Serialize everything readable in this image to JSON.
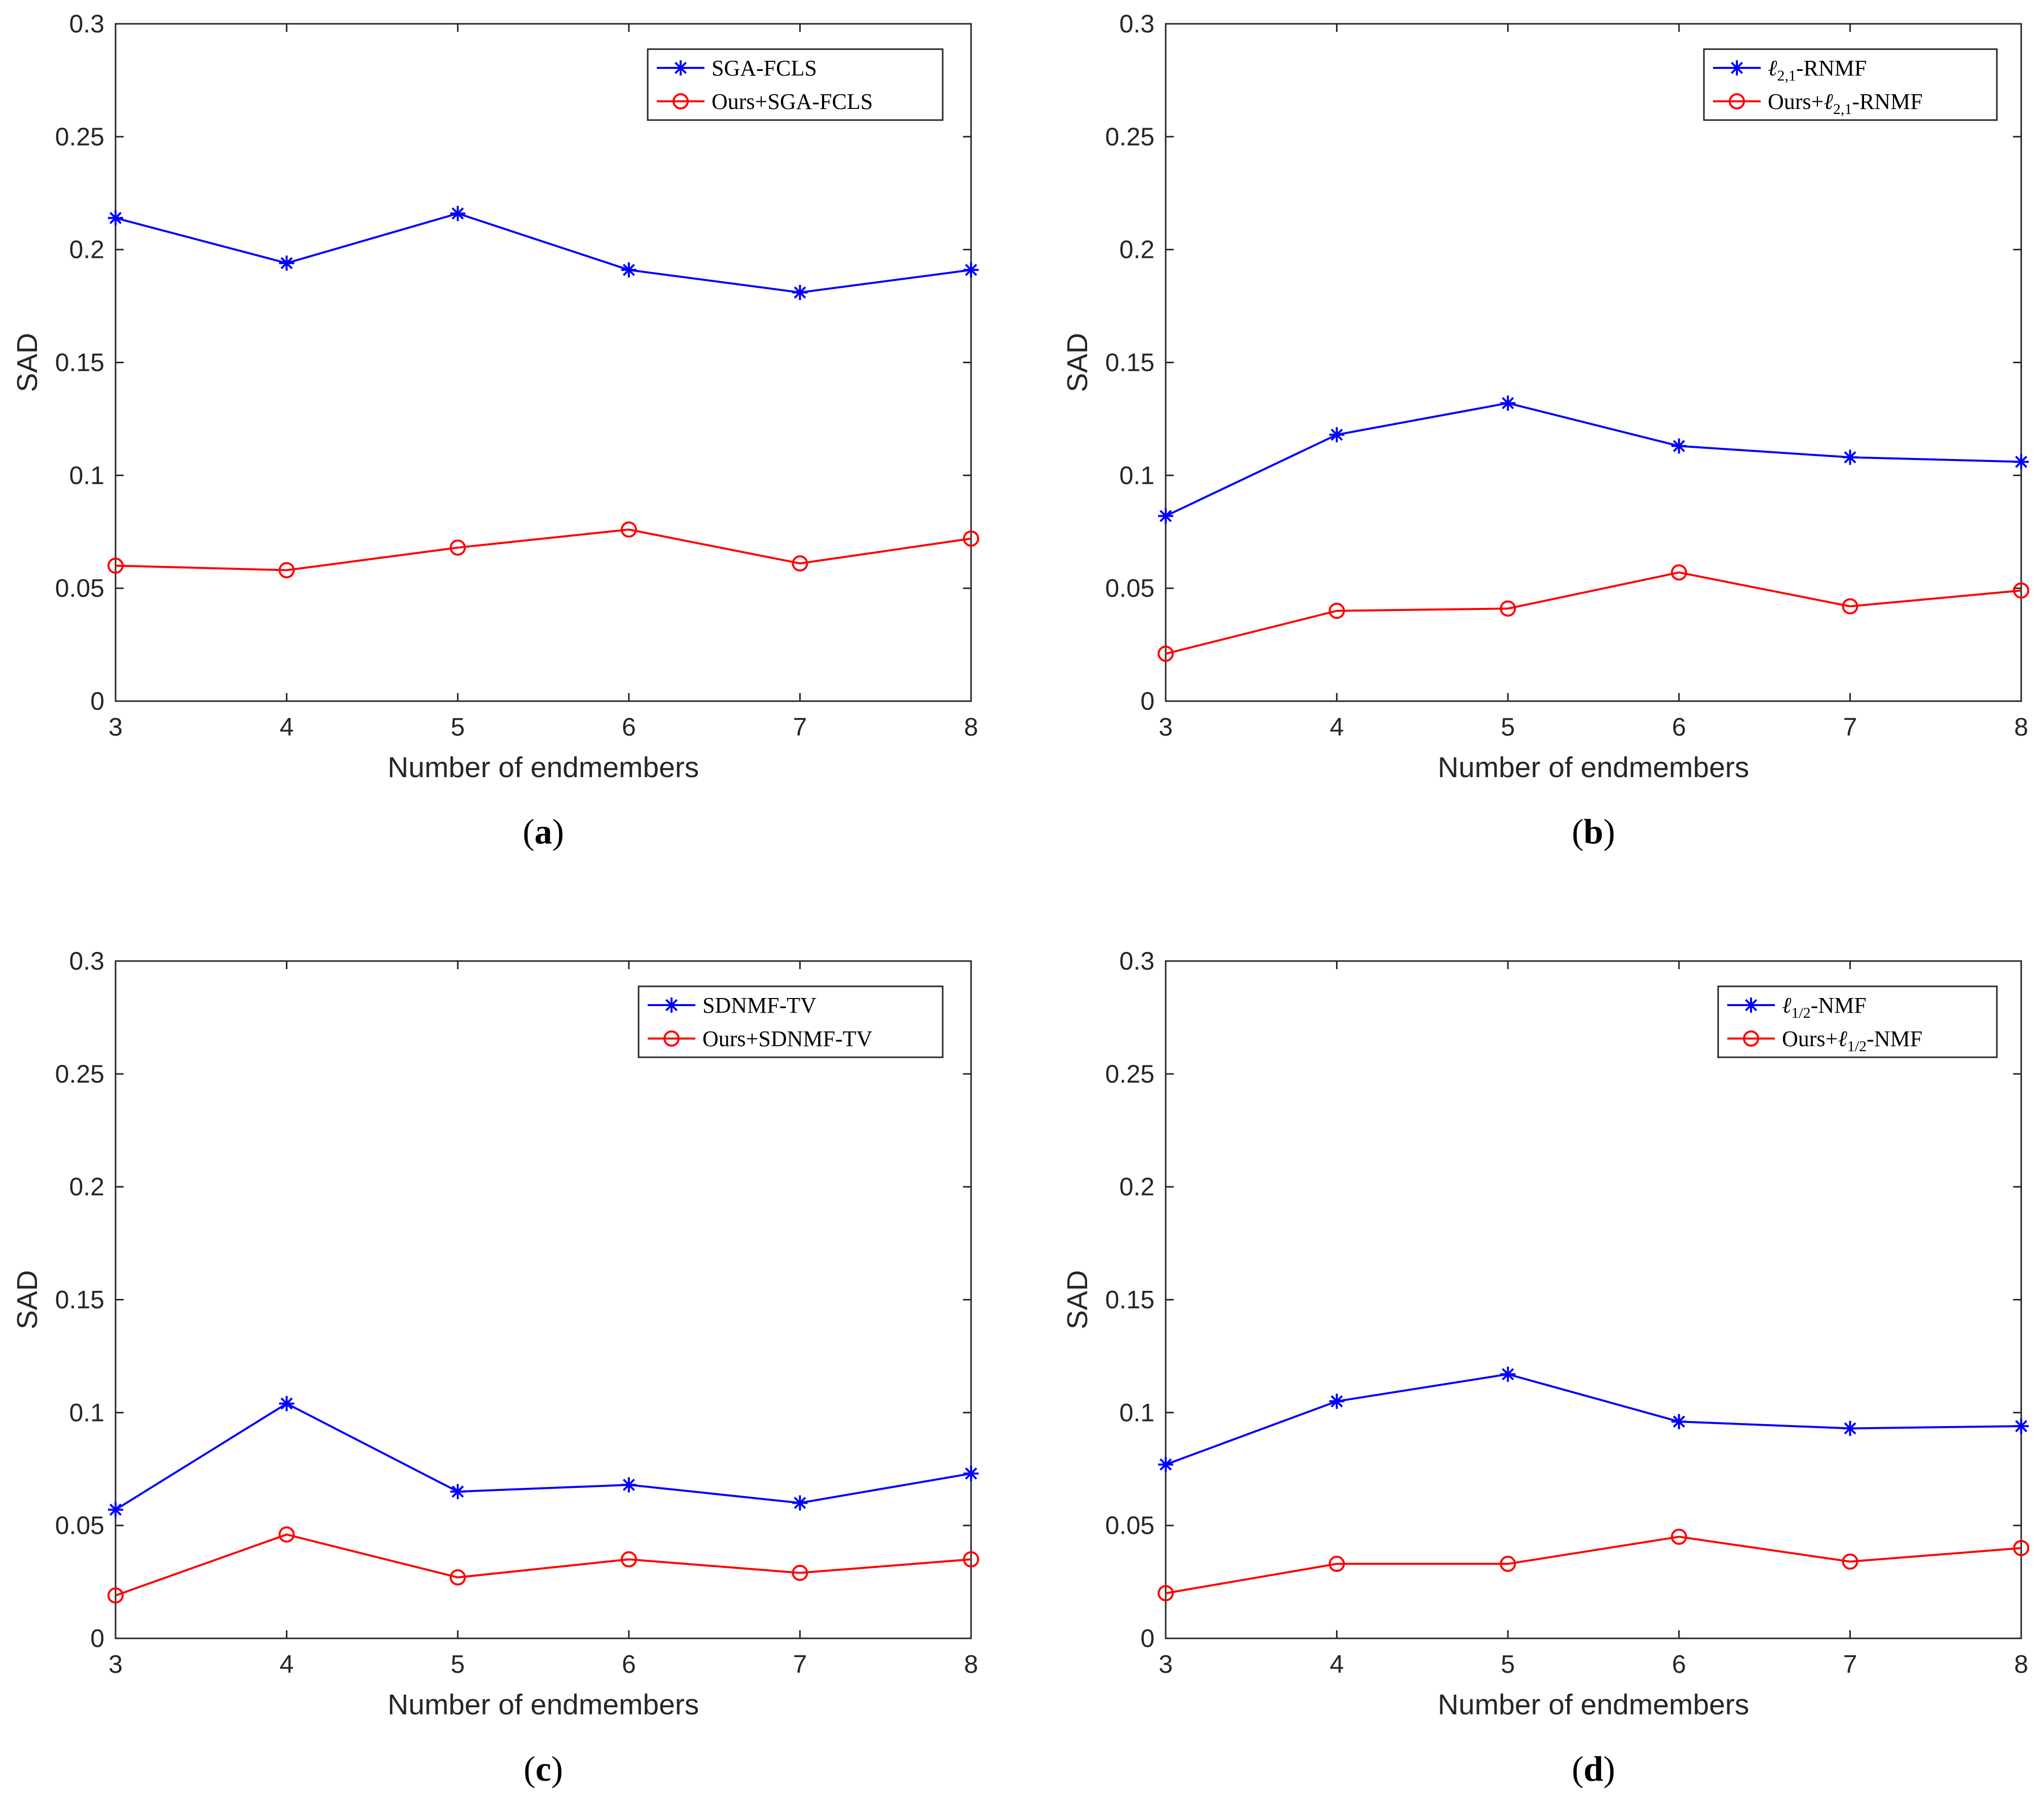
{
  "chart_data": [
    {
      "type": "line",
      "caption": "a",
      "x": [
        3,
        4,
        5,
        6,
        7,
        8
      ],
      "xlabel": "Number of endmembers",
      "ylabel": "SAD",
      "xlim": [
        3,
        8
      ],
      "ylim": [
        0,
        0.3
      ],
      "xticks": [
        "3",
        "4",
        "5",
        "6",
        "7",
        "8"
      ],
      "yticks": [
        "0",
        "0.05",
        "0.1",
        "0.15",
        "0.2",
        "0.25",
        "0.3"
      ],
      "legend_position": "top-right",
      "series": [
        {
          "name": "SGA-FCLS",
          "marker": "asterisk",
          "color": "#0000ff",
          "values": [
            0.214,
            0.194,
            0.216,
            0.191,
            0.181,
            0.191
          ]
        },
        {
          "name": "Ours+SGA-FCLS",
          "marker": "circle",
          "color": "#ff0000",
          "values": [
            0.06,
            0.058,
            0.068,
            0.076,
            0.061,
            0.072
          ]
        }
      ]
    },
    {
      "type": "line",
      "caption": "b",
      "x": [
        3,
        4,
        5,
        6,
        7,
        8
      ],
      "xlabel": "Number of endmembers",
      "ylabel": "SAD",
      "xlim": [
        3,
        8
      ],
      "ylim": [
        0,
        0.3
      ],
      "xticks": [
        "3",
        "4",
        "5",
        "6",
        "7",
        "8"
      ],
      "yticks": [
        "0",
        "0.05",
        "0.1",
        "0.15",
        "0.2",
        "0.25",
        "0.3"
      ],
      "legend_position": "top-right",
      "series": [
        {
          "name": "ℓ2,1-RNMF",
          "marker": "asterisk",
          "color": "#0000ff",
          "values": [
            0.082,
            0.118,
            0.132,
            0.113,
            0.108,
            0.106
          ]
        },
        {
          "name": "Ours+ℓ2,1-RNMF",
          "marker": "circle",
          "color": "#ff0000",
          "values": [
            0.021,
            0.04,
            0.041,
            0.057,
            0.042,
            0.049
          ]
        }
      ]
    },
    {
      "type": "line",
      "caption": "c",
      "x": [
        3,
        4,
        5,
        6,
        7,
        8
      ],
      "xlabel": "Number of endmembers",
      "ylabel": "SAD",
      "xlim": [
        3,
        8
      ],
      "ylim": [
        0,
        0.3
      ],
      "xticks": [
        "3",
        "4",
        "5",
        "6",
        "7",
        "8"
      ],
      "yticks": [
        "0",
        "0.05",
        "0.1",
        "0.15",
        "0.2",
        "0.25",
        "0.3"
      ],
      "legend_position": "top-right",
      "series": [
        {
          "name": "SDNMF-TV",
          "marker": "asterisk",
          "color": "#0000ff",
          "values": [
            0.057,
            0.104,
            0.065,
            0.068,
            0.06,
            0.073
          ]
        },
        {
          "name": "Ours+SDNMF-TV",
          "marker": "circle",
          "color": "#ff0000",
          "values": [
            0.019,
            0.046,
            0.027,
            0.035,
            0.029,
            0.035
          ]
        }
      ]
    },
    {
      "type": "line",
      "caption": "d",
      "x": [
        3,
        4,
        5,
        6,
        7,
        8
      ],
      "xlabel": "Number of endmembers",
      "ylabel": "SAD",
      "xlim": [
        3,
        8
      ],
      "ylim": [
        0,
        0.3
      ],
      "xticks": [
        "3",
        "4",
        "5",
        "6",
        "7",
        "8"
      ],
      "yticks": [
        "0",
        "0.05",
        "0.1",
        "0.15",
        "0.2",
        "0.25",
        "0.3"
      ],
      "legend_position": "top-right",
      "series": [
        {
          "name": "ℓ1/2-NMF",
          "marker": "asterisk",
          "color": "#0000ff",
          "values": [
            0.077,
            0.105,
            0.117,
            0.096,
            0.093,
            0.094
          ]
        },
        {
          "name": "Ours+ℓ1/2-NMF",
          "marker": "circle",
          "color": "#ff0000",
          "values": [
            0.02,
            0.033,
            0.033,
            0.045,
            0.034,
            0.04
          ]
        }
      ]
    }
  ]
}
